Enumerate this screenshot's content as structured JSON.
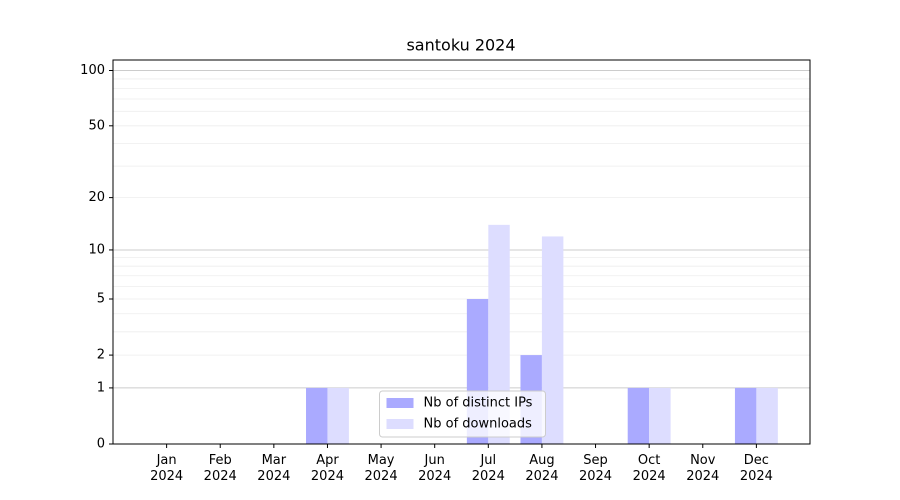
{
  "chart_data": {
    "type": "bar",
    "title": "santoku 2024",
    "categories": [
      "Jan\n2024",
      "Feb\n2024",
      "Mar\n2024",
      "Apr\n2024",
      "May\n2024",
      "Jun\n2024",
      "Jul\n2024",
      "Aug\n2024",
      "Sep\n2024",
      "Oct\n2024",
      "Nov\n2024",
      "Dec\n2024"
    ],
    "series": [
      {
        "name": "Nb of distinct IPs",
        "color": "#aaaaff",
        "values": [
          0,
          0,
          0,
          1,
          0,
          0,
          5,
          2,
          0,
          1,
          0,
          1
        ]
      },
      {
        "name": "Nb of downloads",
        "color": "#ddddff",
        "values": [
          0,
          0,
          0,
          1,
          0,
          0,
          14,
          12,
          0,
          1,
          0,
          1
        ]
      }
    ],
    "yscale": "symlog",
    "ylim": [
      0,
      114
    ],
    "yticks": [
      0,
      1,
      2,
      5,
      10,
      20,
      50,
      100
    ],
    "grid": true,
    "major_grid": [
      1,
      10,
      100
    ],
    "minor_grid": [
      2,
      3,
      4,
      5,
      6,
      7,
      8,
      9,
      20,
      30,
      40,
      50,
      60,
      70,
      80,
      90
    ],
    "legend": "lower center"
  }
}
